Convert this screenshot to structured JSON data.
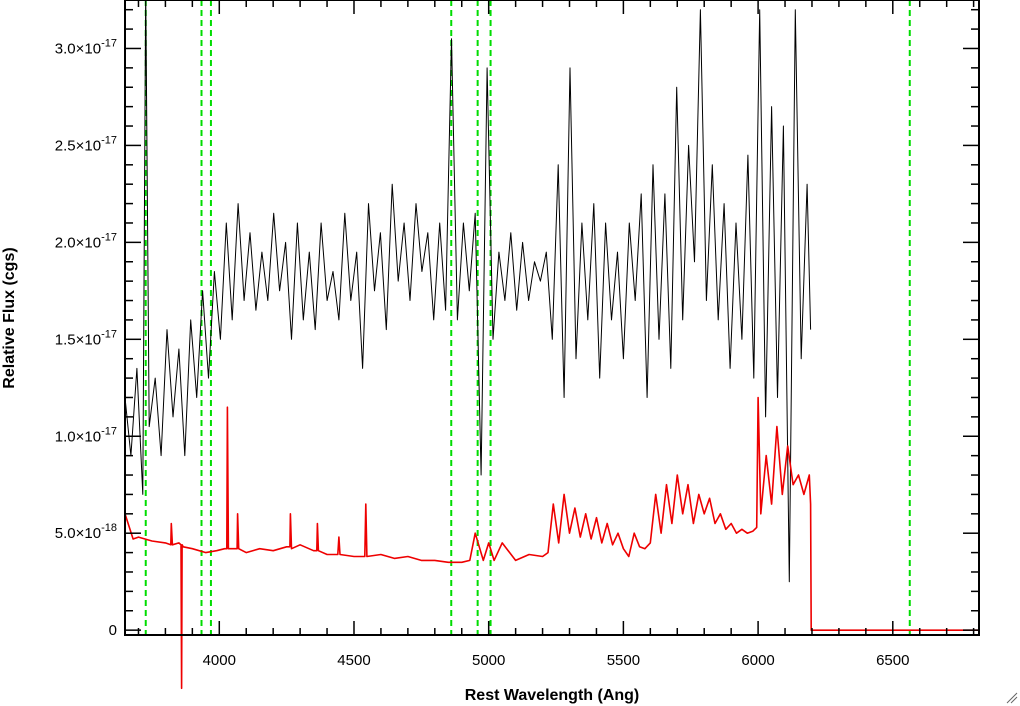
{
  "chart_data": {
    "type": "line",
    "title": "",
    "xlabel": "Rest Wavelength (Ang)",
    "ylabel": "Relative Flux (cgs)",
    "xlim": [
      3650,
      6820
    ],
    "ylim": [
      -2.5e-19,
      3.25e-17
    ],
    "x_ticks": [
      {
        "value": 4000,
        "label": "4000"
      },
      {
        "value": 4500,
        "label": "4500"
      },
      {
        "value": 5000,
        "label": "5000"
      },
      {
        "value": 5500,
        "label": "5500"
      },
      {
        "value": 6000,
        "label": "6000"
      },
      {
        "value": 6500,
        "label": "6500"
      }
    ],
    "y_ticks": [
      {
        "value": 0,
        "mantissa": "0",
        "exponent": ""
      },
      {
        "value": 5e-18,
        "mantissa": "5.0×10",
        "exponent": "-18"
      },
      {
        "value": 1e-17,
        "mantissa": "1.0×10",
        "exponent": "-17"
      },
      {
        "value": 1.5e-17,
        "mantissa": "1.5×10",
        "exponent": "-17"
      },
      {
        "value": 2e-17,
        "mantissa": "2.0×10",
        "exponent": "-17"
      },
      {
        "value": 2.5e-17,
        "mantissa": "2.5×10",
        "exponent": "-17"
      },
      {
        "value": 3e-17,
        "mantissa": "3.0×10",
        "exponent": "-17"
      }
    ],
    "vertical_lines": [
      3727,
      3934,
      3969,
      4861,
      4959,
      5007,
      6563
    ],
    "vertical_line_color": "#00dd00",
    "series": [
      {
        "color": "#000000",
        "x": [
          3650,
          3672,
          3694,
          3716,
          3727,
          3740,
          3762,
          3784,
          3806,
          3828,
          3850,
          3872,
          3894,
          3916,
          3938,
          3960,
          3982,
          4004,
          4026,
          4048,
          4070,
          4092,
          4114,
          4136,
          4158,
          4180,
          4202,
          4224,
          4246,
          4268,
          4290,
          4312,
          4334,
          4356,
          4378,
          4400,
          4422,
          4444,
          4466,
          4488,
          4510,
          4532,
          4554,
          4576,
          4598,
          4620,
          4642,
          4664,
          4686,
          4708,
          4730,
          4752,
          4774,
          4796,
          4818,
          4840,
          4862,
          4884,
          4906,
          4928,
          4950,
          4972,
          4994,
          5016,
          5038,
          5060,
          5082,
          5104,
          5126,
          5148,
          5170,
          5192,
          5214,
          5236,
          5258,
          5280,
          5302,
          5324,
          5346,
          5368,
          5390,
          5412,
          5434,
          5456,
          5478,
          5500,
          5522,
          5544,
          5566,
          5588,
          5610,
          5632,
          5654,
          5676,
          5698,
          5720,
          5742,
          5764,
          5786,
          5808,
          5830,
          5852,
          5874,
          5896,
          5918,
          5940,
          5962,
          5984,
          6006,
          6028,
          6050,
          6072,
          6094,
          6116,
          6138,
          6160,
          6182,
          6195
        ],
        "y": [
          1.2e-17,
          9e-18,
          1.35e-17,
          7e-18,
          3.3e-17,
          1.05e-17,
          1.3e-17,
          9e-18,
          1.55e-17,
          1.1e-17,
          1.45e-17,
          9e-18,
          1.6e-17,
          1.2e-17,
          1.75e-17,
          1.3e-17,
          1.85e-17,
          1.5e-17,
          2.1e-17,
          1.6e-17,
          2.2e-17,
          1.7e-17,
          2.05e-17,
          1.65e-17,
          1.95e-17,
          1.7e-17,
          2.15e-17,
          1.75e-17,
          2e-17,
          1.5e-17,
          2.1e-17,
          1.6e-17,
          1.95e-17,
          1.55e-17,
          2.1e-17,
          1.7e-17,
          1.85e-17,
          1.6e-17,
          2.15e-17,
          1.7e-17,
          1.95e-17,
          1.35e-17,
          2.2e-17,
          1.75e-17,
          2.05e-17,
          1.55e-17,
          2.3e-17,
          1.8e-17,
          2.1e-17,
          1.7e-17,
          2.2e-17,
          1.85e-17,
          2.05e-17,
          1.6e-17,
          2.1e-17,
          1.65e-17,
          3.05e-17,
          1.6e-17,
          2.1e-17,
          1.75e-17,
          2.15e-17,
          8e-18,
          2.9e-17,
          1.5e-17,
          1.95e-17,
          1.7e-17,
          2.05e-17,
          1.65e-17,
          2e-17,
          1.7e-17,
          1.9e-17,
          1.8e-17,
          1.95e-17,
          1.5e-17,
          2.4e-17,
          1.2e-17,
          2.9e-17,
          1.4e-17,
          2.1e-17,
          1.6e-17,
          2.2e-17,
          1.3e-17,
          2.1e-17,
          1.6e-17,
          1.95e-17,
          1.4e-17,
          2.1e-17,
          1.7e-17,
          2.25e-17,
          1.2e-17,
          2.4e-17,
          1.5e-17,
          2.25e-17,
          1.35e-17,
          2.8e-17,
          1.6e-17,
          2.5e-17,
          1.9e-17,
          3.2e-17,
          1.7e-17,
          2.4e-17,
          1.6e-17,
          2.2e-17,
          1.35e-17,
          2.1e-17,
          1.5e-17,
          2.45e-17,
          1.3e-17,
          3.2e-17,
          1.1e-17,
          2.7e-17,
          1.2e-17,
          2.6e-17,
          2.5e-18,
          3.2e-17,
          1.4e-17,
          2.3e-17,
          1.55e-17
        ]
      },
      {
        "color": "#ee0000",
        "x": [
          3650,
          3680,
          3700,
          3750,
          3800,
          3820,
          3822,
          3826,
          3850,
          3858,
          3860,
          3862,
          3866,
          3900,
          3950,
          3990,
          4020,
          4028,
          4030,
          4034,
          4060,
          4066,
          4068,
          4072,
          4100,
          4150,
          4200,
          4250,
          4262,
          4264,
          4268,
          4300,
          4350,
          4362,
          4364,
          4368,
          4400,
          4440,
          4444,
          4448,
          4500,
          4540,
          4544,
          4548,
          4600,
          4650,
          4700,
          4750,
          4800,
          4850,
          4900,
          4930,
          4950,
          4980,
          5000,
          5020,
          5050,
          5100,
          5150,
          5200,
          5220,
          5240,
          5260,
          5280,
          5300,
          5320,
          5340,
          5360,
          5380,
          5400,
          5420,
          5440,
          5460,
          5480,
          5500,
          5520,
          5540,
          5560,
          5580,
          5600,
          5620,
          5640,
          5660,
          5680,
          5700,
          5720,
          5740,
          5760,
          5780,
          5800,
          5820,
          5840,
          5860,
          5880,
          5900,
          5920,
          5940,
          5960,
          5980,
          5995,
          6000,
          6010,
          6030,
          6050,
          6070,
          6090,
          6110,
          6130,
          6150,
          6170,
          6190,
          6195,
          6197,
          6820
        ],
        "y": [
          6e-18,
          4.7e-18,
          4.8e-18,
          4.6e-18,
          4.5e-18,
          4.4e-18,
          5.5e-18,
          4.4e-18,
          4.5e-18,
          4.4e-18,
          -3e-18,
          4.4e-18,
          4.3e-18,
          4.2e-18,
          4e-18,
          4.1e-18,
          4.2e-18,
          4.2e-18,
          1.15e-17,
          4.2e-18,
          4.2e-18,
          4.2e-18,
          6e-18,
          4.2e-18,
          4e-18,
          4.2e-18,
          4.1e-18,
          4.3e-18,
          4.3e-18,
          6e-18,
          4.2e-18,
          4.4e-18,
          4.1e-18,
          4.1e-18,
          5.5e-18,
          4.1e-18,
          3.9e-18,
          3.9e-18,
          4.8e-18,
          3.9e-18,
          3.8e-18,
          3.8e-18,
          6.5e-18,
          3.8e-18,
          3.9e-18,
          3.7e-18,
          3.8e-18,
          3.6e-18,
          3.6e-18,
          3.5e-18,
          3.5e-18,
          3.6e-18,
          5e-18,
          3.6e-18,
          4.5e-18,
          3.6e-18,
          4.5e-18,
          3.6e-18,
          3.9e-18,
          3.8e-18,
          4e-18,
          6.5e-18,
          4.5e-18,
          7e-18,
          5e-18,
          6.3e-18,
          4.8e-18,
          6e-18,
          4.7e-18,
          5.8e-18,
          4.5e-18,
          5.5e-18,
          4.4e-18,
          5e-18,
          4.2e-18,
          3.8e-18,
          5e-18,
          4.3e-18,
          4.2e-18,
          4.5e-18,
          7e-18,
          5e-18,
          7.5e-18,
          5.5e-18,
          8e-18,
          6e-18,
          7.5e-18,
          5.5e-18,
          7e-18,
          6e-18,
          6.8e-18,
          5.5e-18,
          6e-18,
          5.2e-18,
          5.5e-18,
          5e-18,
          5.2e-18,
          5e-18,
          5.1e-18,
          5.3e-18,
          1.2e-17,
          6e-18,
          9e-18,
          6.5e-18,
          1.05e-17,
          7e-18,
          9.5e-18,
          7.5e-18,
          8e-18,
          7e-18,
          8e-18,
          6.5e-18,
          0,
          0
        ]
      }
    ]
  }
}
